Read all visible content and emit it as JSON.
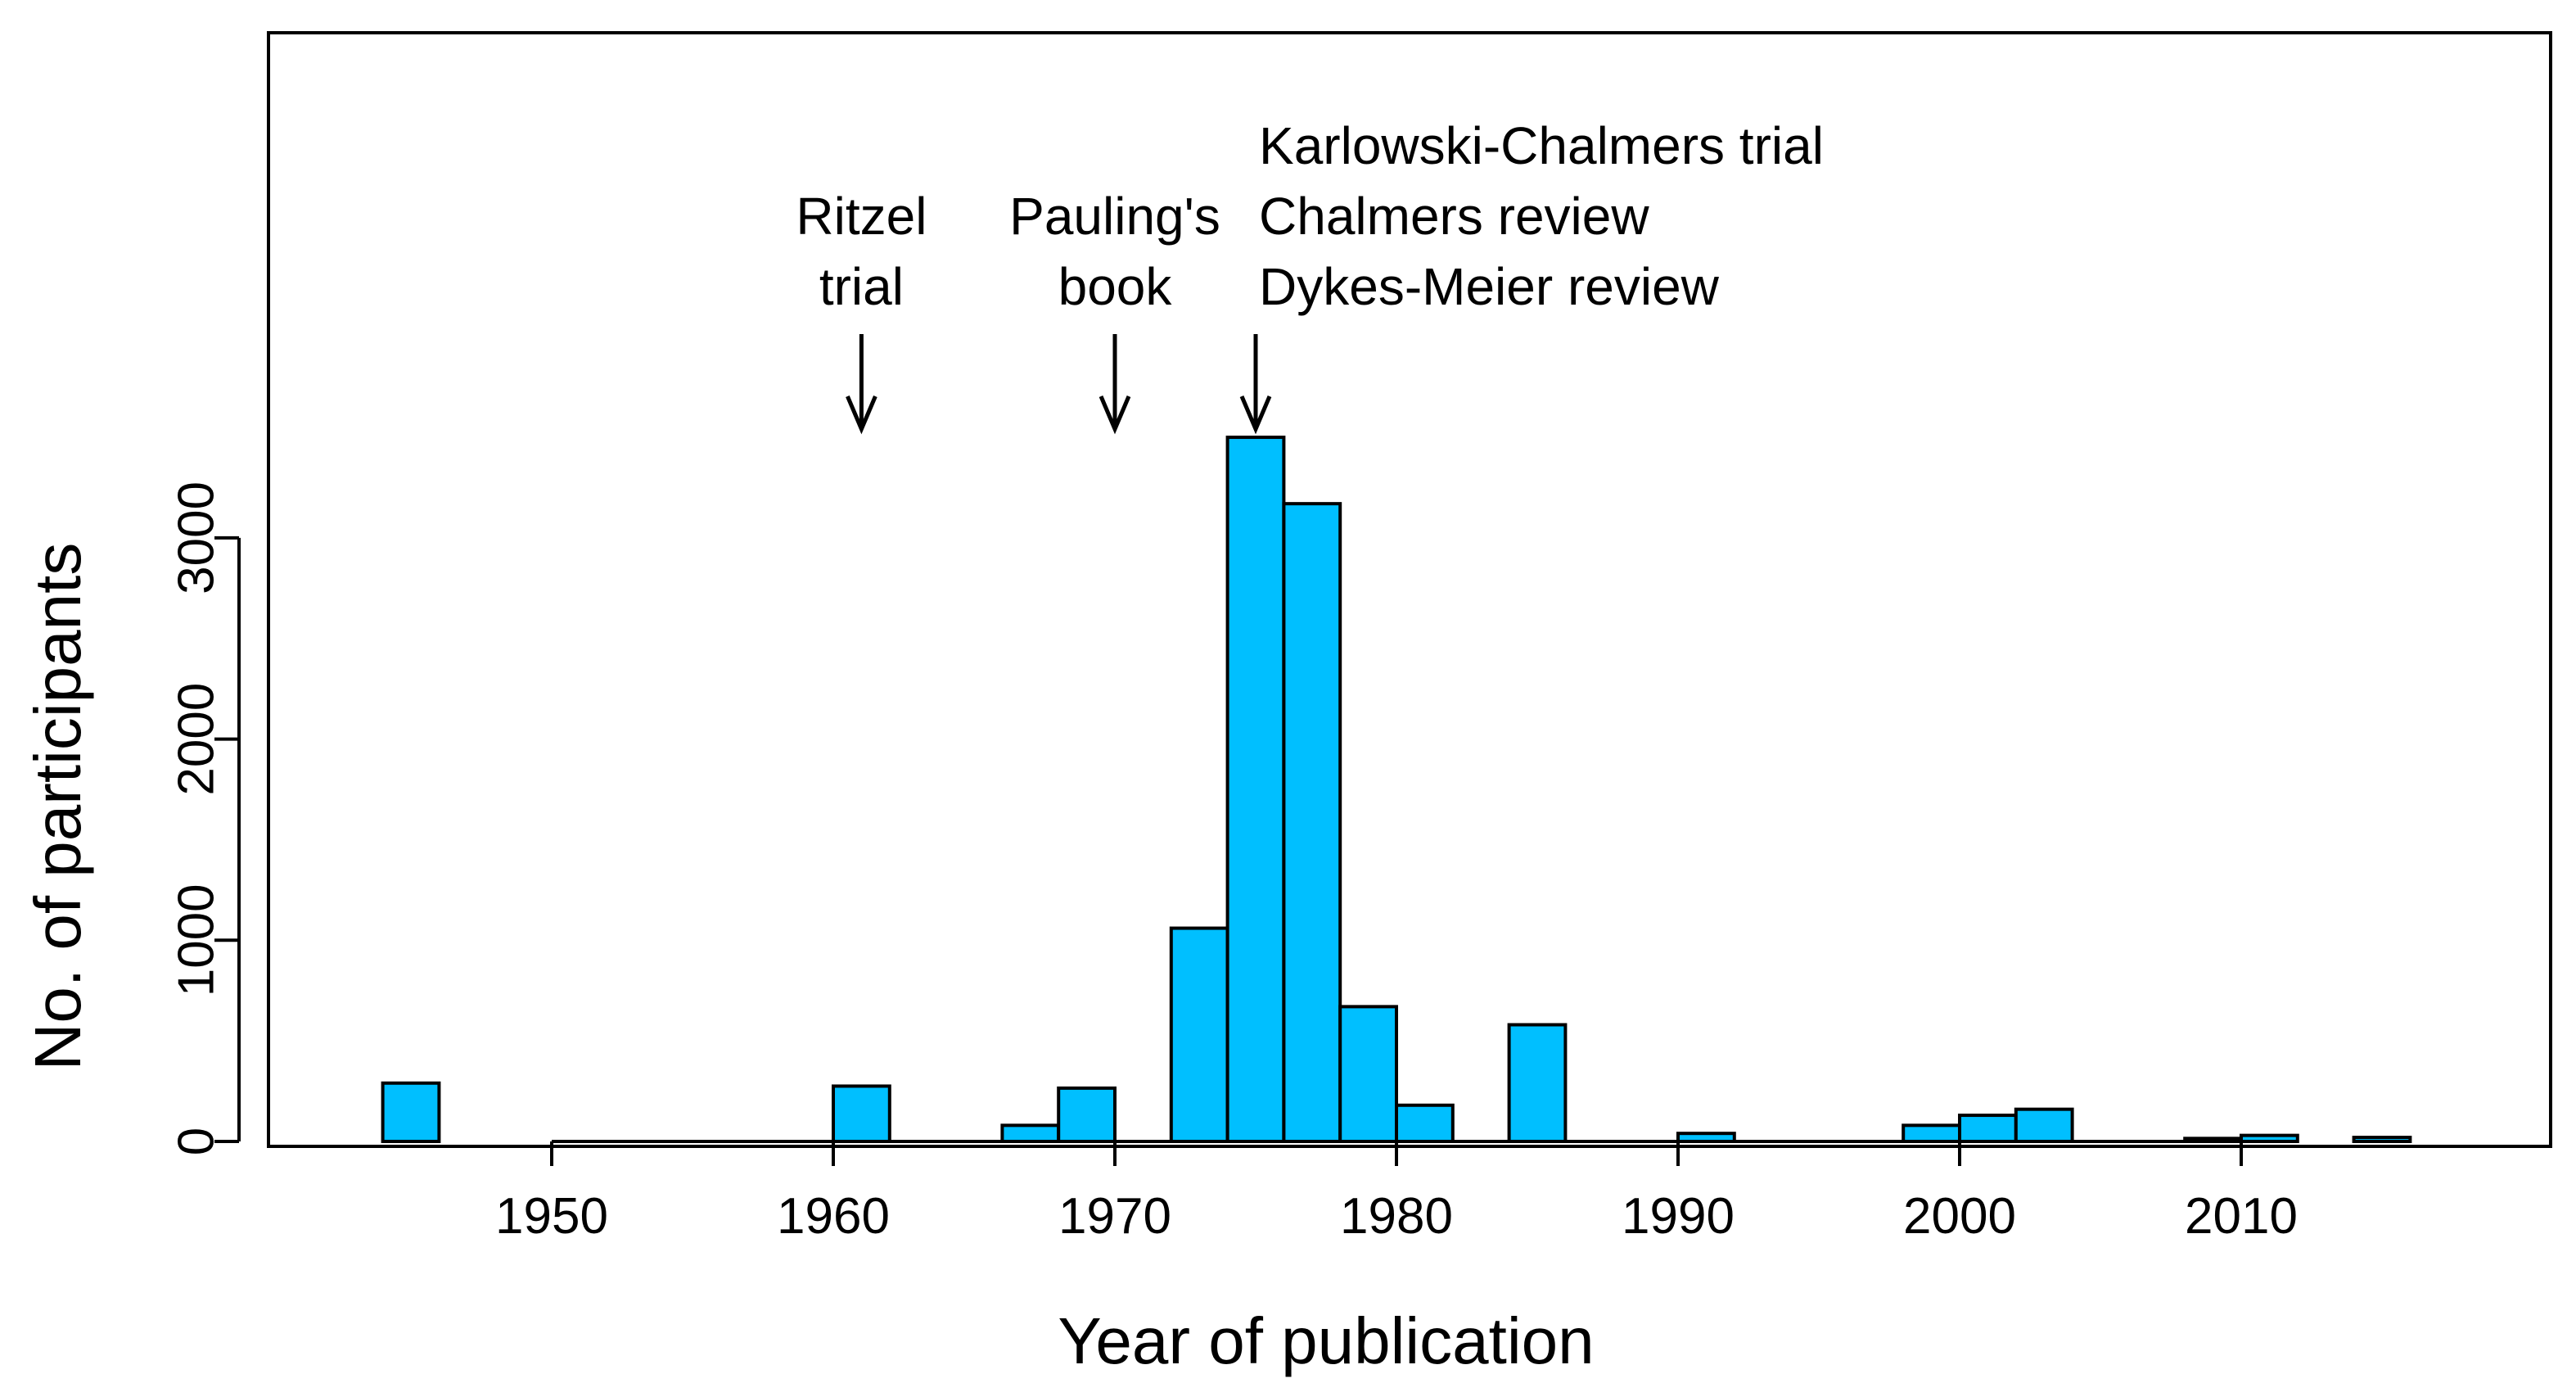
{
  "chart_data": {
    "type": "bar",
    "title": "",
    "xlabel": "Year of publication",
    "ylabel": "No. of participants",
    "bar_color": "#00BFFF",
    "x_ticks": [
      "1950",
      "1960",
      "1970",
      "1980",
      "1990",
      "2000",
      "2010"
    ],
    "y_ticks": [
      "0",
      "1000",
      "2000",
      "3000"
    ],
    "xlim": [
      1940,
      2020
    ],
    "ylim": [
      0,
      4400
    ],
    "bin_width": 2,
    "bars": [
      {
        "x0": 1944,
        "x1": 1946,
        "value": 290
      },
      {
        "x0": 1960,
        "x1": 1962,
        "value": 275
      },
      {
        "x0": 1966,
        "x1": 1968,
        "value": 80
      },
      {
        "x0": 1968,
        "x1": 1970,
        "value": 265
      },
      {
        "x0": 1972,
        "x1": 1974,
        "value": 1060
      },
      {
        "x0": 1974,
        "x1": 1976,
        "value": 3500
      },
      {
        "x0": 1976,
        "x1": 1978,
        "value": 3170
      },
      {
        "x0": 1978,
        "x1": 1980,
        "value": 670
      },
      {
        "x0": 1980,
        "x1": 1982,
        "value": 180
      },
      {
        "x0": 1984,
        "x1": 1986,
        "value": 580
      },
      {
        "x0": 1990,
        "x1": 1992,
        "value": 40
      },
      {
        "x0": 1998,
        "x1": 2000,
        "value": 80
      },
      {
        "x0": 2000,
        "x1": 2002,
        "value": 130
      },
      {
        "x0": 2002,
        "x1": 2004,
        "value": 160
      },
      {
        "x0": 2008,
        "x1": 2010,
        "value": 15
      },
      {
        "x0": 2010,
        "x1": 2012,
        "value": 30
      },
      {
        "x0": 2014,
        "x1": 2016,
        "value": 20
      }
    ],
    "annotations": [
      {
        "x": 1961,
        "lines": [
          "Ritzel",
          "trial"
        ],
        "align": "center"
      },
      {
        "x": 1970,
        "lines": [
          "Pauling's",
          "book"
        ],
        "align": "center"
      },
      {
        "x": 1975,
        "lines": [
          "Karlowski-Chalmers trial",
          "Chalmers review",
          "Dykes-Meier review"
        ],
        "align": "left"
      }
    ]
  }
}
